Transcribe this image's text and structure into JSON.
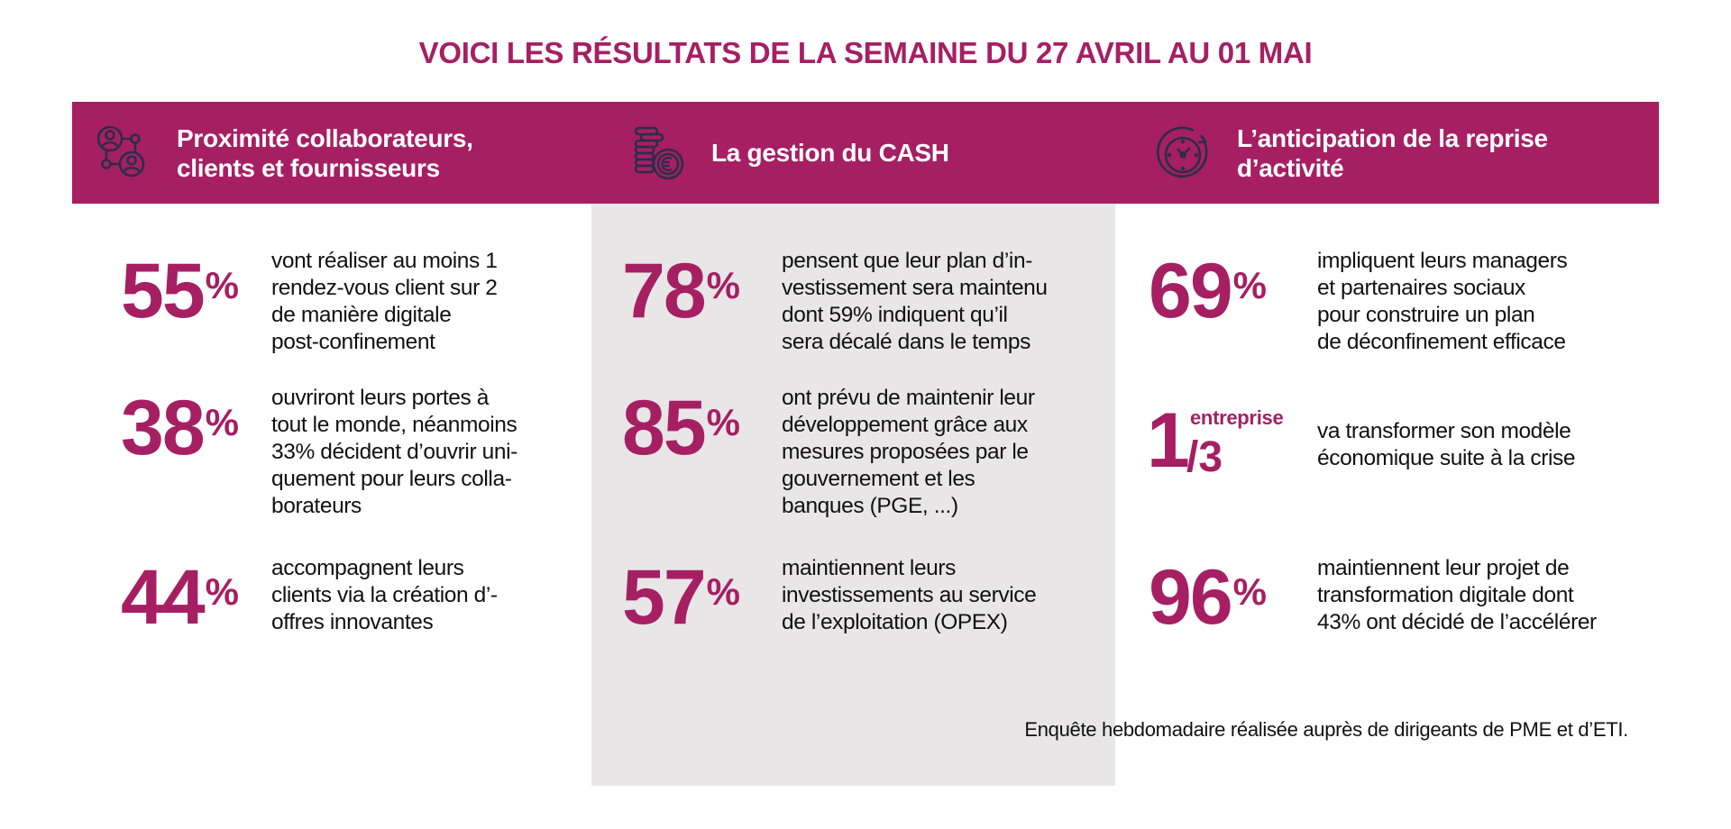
{
  "title": "VOICI LES RÉSULTATS DE LA SEMAINE DU 27 AVRIL AU 01 MAI",
  "colors": {
    "accent": "#A61F63",
    "icon": "#2B2D4A",
    "column_bg": "#E8E6E7"
  },
  "columns": [
    {
      "icon": "people-network-icon",
      "heading_lines": [
        "Proximité collaborateurs,",
        "clients et fournisseurs"
      ],
      "stats": [
        {
          "value": "55",
          "unit": "%",
          "lines": [
            "vont réaliser au moins 1",
            "rendez-vous client sur 2",
            "de manière digitale",
            "post-confinement"
          ]
        },
        {
          "value": "38",
          "unit": "%",
          "lines": [
            "ouvriront leurs portes à",
            "tout le monde, néanmoins",
            "33% décident d’ouvrir uni-",
            "quement pour leurs colla-",
            "borateurs"
          ]
        },
        {
          "value": "44",
          "unit": "%",
          "lines": [
            "accompagnent leurs",
            "clients via la création d’-",
            "offres innovantes"
          ]
        }
      ]
    },
    {
      "icon": "euro-coins-icon",
      "heading_lines": [
        "La gestion du CASH"
      ],
      "stats": [
        {
          "value": "78",
          "unit": "%",
          "lines": [
            "pensent que leur plan d’in-",
            "vestissement sera maintenu",
            "dont 59% indiquent qu’il",
            "sera décalé dans le temps"
          ]
        },
        {
          "value": "85",
          "unit": "%",
          "lines": [
            "ont prévu de maintenir leur",
            "développement grâce aux",
            "mesures proposées par le",
            "gouvernement et les",
            "banques (PGE, ...)"
          ]
        },
        {
          "value": "57",
          "unit": "%",
          "lines": [
            "maintiennent leurs",
            "investissements au service",
            "de l’exploitation (OPEX)"
          ]
        }
      ]
    },
    {
      "icon": "clock-refresh-icon",
      "heading_lines": [
        "L’anticipation de la reprise",
        "d’activité"
      ],
      "stats": [
        {
          "value": "69",
          "unit": "%",
          "lines": [
            "impliquent leurs managers",
            "et partenaires sociaux",
            "pour construire un plan",
            "de déconfinement efficace"
          ]
        },
        {
          "numerator": "1",
          "denominator": "/3",
          "label": "entreprise",
          "lines": [
            "va transformer son modèle",
            "économique suite à la crise"
          ]
        },
        {
          "value": "96",
          "unit": "%",
          "lines": [
            "maintiennent leur projet de",
            "transformation digitale dont",
            "43% ont décidé de l’accélérer"
          ]
        }
      ]
    }
  ],
  "footnote": "Enquête hebdomadaire réalisée auprès de dirigeants de PME et d’ETI."
}
